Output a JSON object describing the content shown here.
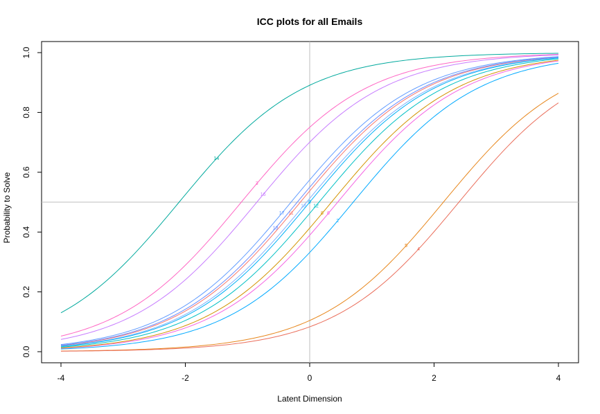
{
  "chart_data": {
    "type": "line",
    "title": "ICC plots for all Emails",
    "xlabel": "Latent Dimension",
    "ylabel": "Probability to Solve",
    "xlim": [
      -4,
      4
    ],
    "ylim": [
      0,
      1
    ],
    "xticks": [
      "-4",
      "-2",
      "0",
      "2",
      "4"
    ],
    "yticks": [
      "0.0",
      "0.2",
      "0.4",
      "0.6",
      "0.8",
      "1.0"
    ],
    "reference_lines": {
      "x": 0,
      "y": 0.5,
      "color": "#bebebe"
    },
    "grid": false,
    "series": [
      {
        "label": "14",
        "color": "#00a99d",
        "difficulty": -2.1,
        "marker_x": -1.5
      },
      {
        "label": "3",
        "color": "#ff66c4",
        "difficulty": -1.1,
        "marker_x": -0.85
      },
      {
        "label": "16",
        "color": "#c77cff",
        "difficulty": -0.85,
        "marker_x": -0.75
      },
      {
        "label": "17",
        "color": "#619cff",
        "difficulty": -0.3,
        "marker_x": -0.45
      },
      {
        "label": "11",
        "color": "#f8766d",
        "difficulty": -0.15,
        "marker_x": -0.3
      },
      {
        "label": "13",
        "color": "#6a8cff",
        "difficulty": -0.2,
        "marker_x": -0.55
      },
      {
        "label": "18",
        "color": "#7fb2ff",
        "difficulty": -0.05,
        "marker_x": -0.1
      },
      {
        "label": "9",
        "color": "#00b0f6",
        "difficulty": 0.0,
        "marker_x": 0.0
      },
      {
        "label": "12",
        "color": "#00bfc4",
        "difficulty": 0.15,
        "marker_x": 0.1
      },
      {
        "label": "6",
        "color": "#f564e3",
        "difficulty": 0.45,
        "marker_x": 0.3
      },
      {
        "label": "8",
        "color": "#d39200",
        "difficulty": 0.35,
        "marker_x": 0.2
      },
      {
        "label": "2",
        "color": "#00a9ff",
        "difficulty": 0.7,
        "marker_x": 0.45
      },
      {
        "label": "5",
        "color": "#e7861b",
        "difficulty": 2.15,
        "marker_x": 1.55
      },
      {
        "label": "4",
        "color": "#ea6d5a",
        "difficulty": 2.4,
        "marker_x": 1.75
      }
    ],
    "discrimination": 1.0
  }
}
